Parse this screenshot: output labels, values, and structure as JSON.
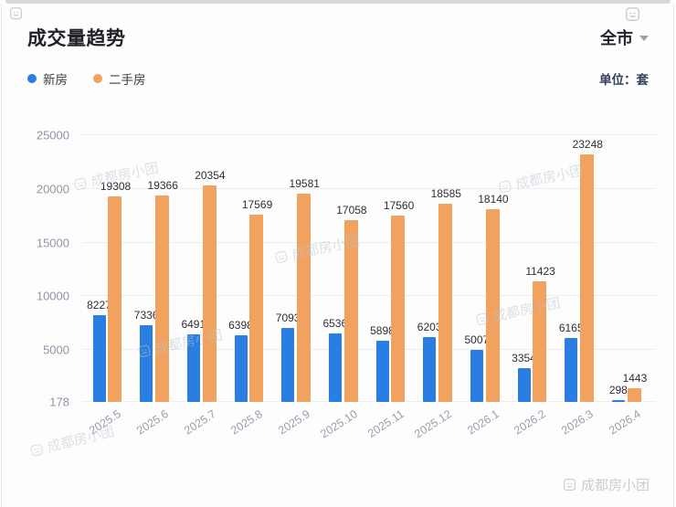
{
  "header": {
    "title": "成交量趋势",
    "region_selector": "全市",
    "unit_label": "单位：套"
  },
  "legend": [
    {
      "label": "新房",
      "color": "#2a7de1"
    },
    {
      "label": "二手房",
      "color": "#f2a25f"
    }
  ],
  "watermark": {
    "text": "成都房小团"
  },
  "chart_data": {
    "type": "bar",
    "title": "成交量趋势",
    "unit": "套",
    "categories": [
      "2025.5",
      "2025.6",
      "2025.7",
      "2025.8",
      "2025.9",
      "2025.10",
      "2025.11",
      "2025.12",
      "2026.1",
      "2026.2",
      "2026.3",
      "2026.4"
    ],
    "series": [
      {
        "name": "新房",
        "color": "#2a7de1",
        "values": [
          8227,
          7336,
          6491,
          6398,
          7093,
          6536,
          5898,
          6203,
          5007,
          3354,
          6165,
          298
        ]
      },
      {
        "name": "二手房",
        "color": "#f2a25f",
        "values": [
          19308,
          19366,
          20354,
          17569,
          19581,
          17058,
          17560,
          18585,
          18140,
          11423,
          23248,
          1443
        ]
      }
    ],
    "ylim": [
      178,
      25000
    ],
    "yticks": [
      178,
      5000,
      10000,
      15000,
      20000,
      25000
    ],
    "grid": true,
    "value_labels": true,
    "legend_position": "top-left",
    "x_tick_rotation": -33
  }
}
